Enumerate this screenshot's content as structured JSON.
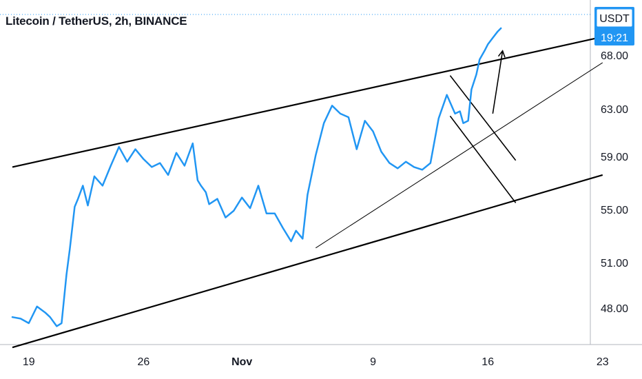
{
  "header": {
    "title": "Litecoin / TetherUS, 2h, BINANCE"
  },
  "price_badge": {
    "currency": "USDT",
    "countdown": "19:21",
    "color": "#2196f3"
  },
  "colors": {
    "series": "#2196f3",
    "trendlines": "#000000",
    "axis_text": "#131722",
    "axis_line": "#b2b5be"
  },
  "chart_data": {
    "type": "line",
    "title": "Litecoin / TetherUS, 2h, BINANCE",
    "xlabel": "",
    "ylabel": "",
    "y_ticks": [
      "48.00",
      "51.00",
      "55.00",
      "59.00",
      "63.00",
      "68.00"
    ],
    "x_ticks": [
      {
        "label": "19",
        "day": 19,
        "bold": false
      },
      {
        "label": "26",
        "day": 26,
        "bold": false
      },
      {
        "label": "Nov",
        "day": 32,
        "bold": true
      },
      {
        "label": "9",
        "day": 40,
        "bold": false
      },
      {
        "label": "16",
        "day": 47,
        "bold": false
      },
      {
        "label": "23",
        "day": 54,
        "bold": false
      }
    ],
    "series": [
      {
        "color": "#2196f3",
        "x": [
          18.0,
          18.5,
          19.0,
          19.5,
          20.0,
          20.3,
          20.7,
          21.0,
          21.3,
          21.5,
          21.8,
          22.0,
          22.3,
          22.6,
          23.0,
          23.5,
          24.0,
          24.5,
          25.0,
          25.5,
          26.0,
          26.5,
          27.0,
          27.5,
          28.0,
          28.5,
          29.0,
          29.3,
          29.5,
          29.8,
          30.0,
          30.5,
          31.0,
          31.5,
          32.0,
          32.5,
          33.0,
          33.5,
          34.0,
          34.5,
          35.0,
          35.3,
          35.5,
          35.7,
          36.0,
          36.5,
          37.0,
          37.5,
          38.0,
          38.5,
          39.0,
          39.5,
          40.0,
          40.5,
          41.0,
          41.5,
          42.0,
          42.5,
          43.0,
          43.5,
          44.0,
          44.5,
          45.0,
          45.3,
          45.5,
          45.8,
          46.0,
          46.3,
          46.5,
          46.8,
          47.0,
          47.3,
          47.6,
          47.8
        ],
        "y": [
          47.4,
          47.3,
          47.0,
          48.1,
          47.7,
          47.4,
          46.8,
          47.0,
          50.2,
          52.0,
          55.2,
          55.8,
          56.8,
          55.3,
          57.5,
          56.8,
          58.3,
          59.8,
          58.6,
          59.6,
          58.8,
          58.2,
          58.5,
          57.6,
          59.3,
          58.3,
          60.1,
          57.2,
          56.8,
          56.3,
          55.4,
          55.8,
          54.4,
          54.9,
          55.9,
          55.1,
          56.8,
          54.7,
          54.7,
          53.6,
          52.6,
          53.4,
          53.1,
          52.8,
          56.1,
          59.1,
          61.8,
          63.3,
          62.6,
          62.3,
          59.6,
          62.0,
          61.1,
          59.4,
          58.5,
          58.1,
          58.6,
          58.2,
          58.0,
          58.5,
          62.2,
          64.3,
          62.6,
          62.8,
          61.8,
          62.0,
          64.8,
          66.2,
          67.6,
          68.4,
          69.0,
          69.6,
          70.2,
          70.5
        ],
        "values_note_free": true
      }
    ],
    "trendlines": [
      {
        "x1": 18.0,
        "y1": 58.2,
        "x2": 54.0,
        "y2": 69.7
      },
      {
        "x1": 18.0,
        "y1": 45.4,
        "x2": 54.0,
        "y2": 57.6
      },
      {
        "x1": 36.5,
        "y1": 52.1,
        "x2": 54.0,
        "y2": 67.3
      },
      {
        "x1": 44.7,
        "y1": 66.1,
        "x2": 48.7,
        "y2": 58.7
      },
      {
        "x1": 44.7,
        "y1": 62.4,
        "x2": 48.7,
        "y2": 55.5
      }
    ],
    "arrow": {
      "x1": 47.3,
      "y1": 62.6,
      "x2": 47.9,
      "y2": 68.4
    },
    "grid": false,
    "legend": "none"
  }
}
